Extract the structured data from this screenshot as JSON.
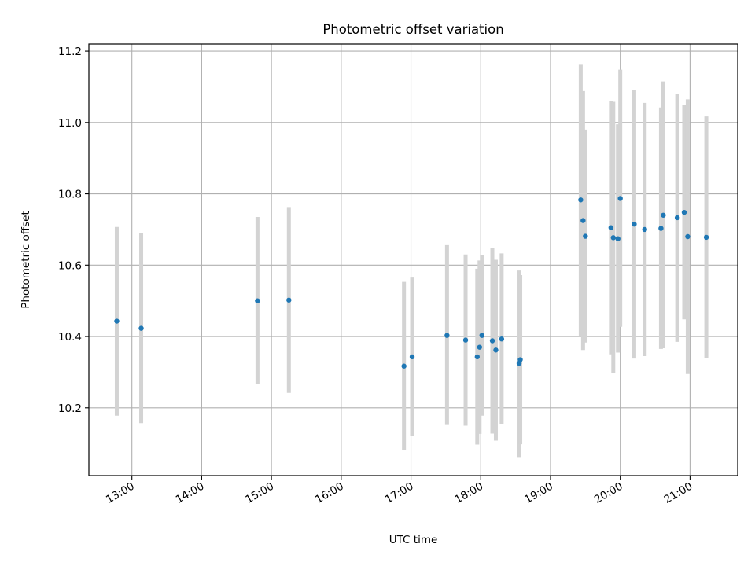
{
  "chart_data": {
    "type": "scatter",
    "title": "Photometric offset variation",
    "xlabel": "UTC time",
    "ylabel": "Photometric offset",
    "xlim": [
      "12:23",
      "21:41"
    ],
    "ylim": [
      10.01,
      11.22
    ],
    "grid": true,
    "x_ticks": [
      "13:00",
      "14:00",
      "15:00",
      "16:00",
      "17:00",
      "18:00",
      "19:00",
      "20:00",
      "21:00"
    ],
    "y_ticks": [
      "10.2",
      "10.4",
      "10.6",
      "10.8",
      "11.0",
      "11.2"
    ],
    "series": [
      {
        "marker_color": "#1f77b4",
        "errorbar_color": "#d3d3d3",
        "points": [
          {
            "x": "12:47",
            "y": 10.443,
            "ylow": 10.178,
            "yhigh": 10.707
          },
          {
            "x": "13:08",
            "y": 10.423,
            "ylow": 10.157,
            "yhigh": 10.69
          },
          {
            "x": "14:48",
            "y": 10.5,
            "ylow": 10.266,
            "yhigh": 10.735
          },
          {
            "x": "15:15",
            "y": 10.502,
            "ylow": 10.242,
            "yhigh": 10.763
          },
          {
            "x": "16:54",
            "y": 10.317,
            "ylow": 10.082,
            "yhigh": 10.553
          },
          {
            "x": "17:01",
            "y": 10.343,
            "ylow": 10.122,
            "yhigh": 10.565
          },
          {
            "x": "17:31",
            "y": 10.403,
            "ylow": 10.152,
            "yhigh": 10.656
          },
          {
            "x": "17:47",
            "y": 10.39,
            "ylow": 10.15,
            "yhigh": 10.63
          },
          {
            "x": "17:57",
            "y": 10.343,
            "ylow": 10.097,
            "yhigh": 10.59
          },
          {
            "x": "17:59",
            "y": 10.37,
            "ylow": 10.127,
            "yhigh": 10.613
          },
          {
            "x": "18:01",
            "y": 10.403,
            "ylow": 10.178,
            "yhigh": 10.627
          },
          {
            "x": "18:10",
            "y": 10.388,
            "ylow": 10.128,
            "yhigh": 10.647
          },
          {
            "x": "18:13",
            "y": 10.362,
            "ylow": 10.108,
            "yhigh": 10.615
          },
          {
            "x": "18:18",
            "y": 10.393,
            "ylow": 10.155,
            "yhigh": 10.633
          },
          {
            "x": "18:33",
            "y": 10.325,
            "ylow": 10.062,
            "yhigh": 10.585
          },
          {
            "x": "18:34",
            "y": 10.335,
            "ylow": 10.098,
            "yhigh": 10.572
          },
          {
            "x": "19:26",
            "y": 10.783,
            "ylow": 10.402,
            "yhigh": 11.162
          },
          {
            "x": "19:28",
            "y": 10.725,
            "ylow": 10.362,
            "yhigh": 11.088
          },
          {
            "x": "19:30",
            "y": 10.681,
            "ylow": 10.383,
            "yhigh": 10.98
          },
          {
            "x": "19:52",
            "y": 10.705,
            "ylow": 10.35,
            "yhigh": 11.06
          },
          {
            "x": "19:54",
            "y": 10.677,
            "ylow": 10.298,
            "yhigh": 11.058
          },
          {
            "x": "19:58",
            "y": 10.674,
            "ylow": 10.355,
            "yhigh": 10.995
          },
          {
            "x": "20:00",
            "y": 10.787,
            "ylow": 10.427,
            "yhigh": 11.148
          },
          {
            "x": "20:12",
            "y": 10.715,
            "ylow": 10.338,
            "yhigh": 11.092
          },
          {
            "x": "20:21",
            "y": 10.7,
            "ylow": 10.345,
            "yhigh": 11.055
          },
          {
            "x": "20:35",
            "y": 10.703,
            "ylow": 10.365,
            "yhigh": 11.042
          },
          {
            "x": "20:37",
            "y": 10.74,
            "ylow": 10.367,
            "yhigh": 11.115
          },
          {
            "x": "20:49",
            "y": 10.733,
            "ylow": 10.385,
            "yhigh": 11.08
          },
          {
            "x": "20:55",
            "y": 10.748,
            "ylow": 10.448,
            "yhigh": 11.048
          },
          {
            "x": "20:58",
            "y": 10.68,
            "ylow": 10.295,
            "yhigh": 11.065
          },
          {
            "x": "21:14",
            "y": 10.678,
            "ylow": 10.34,
            "yhigh": 11.017
          }
        ]
      }
    ]
  }
}
